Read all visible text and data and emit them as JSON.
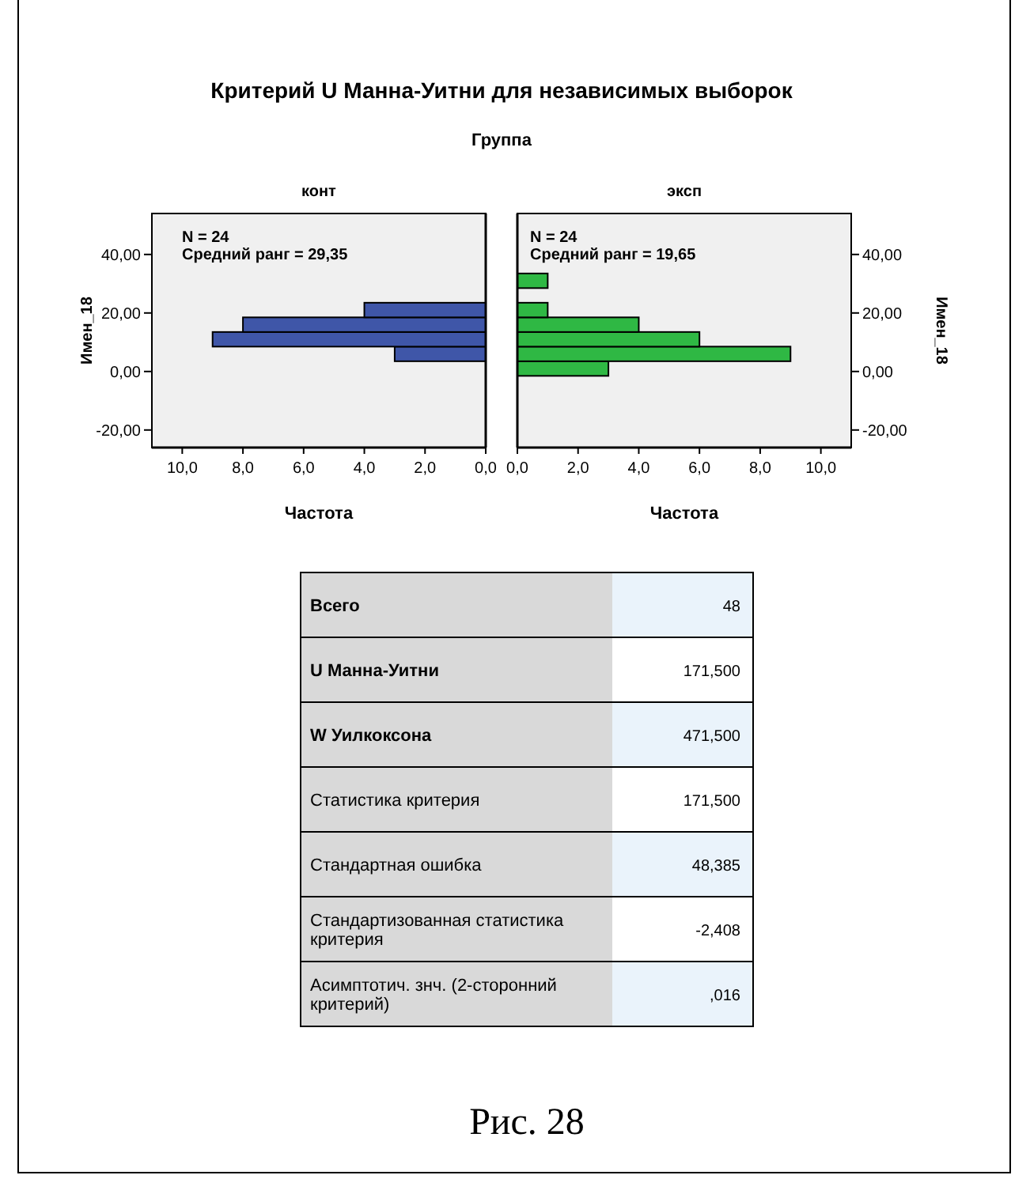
{
  "chart_data": [
    {
      "type": "histogram",
      "orientation": "horizontal",
      "title": "конт",
      "xlabel": "Частота",
      "ylabel": "Имен_18",
      "annotations": [
        "Критерий U Манна-Уитни для независимых выборок",
        "Группа",
        "N = 24",
        "Средний ранг = 29,35"
      ],
      "bins": [
        -1.5,
        3.5,
        8.5,
        13.5,
        18.5,
        23.5,
        28.5,
        33.5
      ],
      "values": [
        0,
        3,
        9,
        8,
        4,
        0,
        0
      ],
      "color": "#3f56a8",
      "xlim": [
        11,
        0
      ],
      "xticks": [
        {
          "value": 10,
          "label": "10,0"
        },
        {
          "value": 8,
          "label": "8,0"
        },
        {
          "value": 6,
          "label": "6,0"
        },
        {
          "value": 4,
          "label": "4,0"
        },
        {
          "value": 2,
          "label": "2,0"
        },
        {
          "value": 0,
          "label": "0,0"
        }
      ],
      "ylim": [
        -26,
        54
      ],
      "yticks": [
        {
          "value": -20,
          "label": "-20,00"
        },
        {
          "value": 0,
          "label": "0,00"
        },
        {
          "value": 20,
          "label": "20,00"
        },
        {
          "value": 40,
          "label": "40,00"
        }
      ]
    },
    {
      "type": "histogram",
      "orientation": "horizontal",
      "title": "эксп",
      "xlabel": "Частота",
      "ylabel": "Имен_18",
      "annotations": [
        "N = 24",
        "Средний ранг = 19,65"
      ],
      "bins": [
        -1.5,
        3.5,
        8.5,
        13.5,
        18.5,
        23.5,
        28.5,
        33.5
      ],
      "values": [
        3,
        9,
        6,
        4,
        1,
        0,
        1
      ],
      "color": "#2fb844",
      "xlim": [
        0,
        11
      ],
      "xticks": [
        {
          "value": 0,
          "label": "0,0"
        },
        {
          "value": 2,
          "label": "2,0"
        },
        {
          "value": 4,
          "label": "4,0"
        },
        {
          "value": 6,
          "label": "6,0"
        },
        {
          "value": 8,
          "label": "8,0"
        },
        {
          "value": 10,
          "label": "10,0"
        }
      ],
      "ylim": [
        -26,
        54
      ],
      "yticks": [
        {
          "value": -20,
          "label": "-20,00"
        },
        {
          "value": 0,
          "label": "0,00"
        },
        {
          "value": 20,
          "label": "20,00"
        },
        {
          "value": 40,
          "label": "40,00"
        }
      ]
    },
    {
      "type": "other",
      "title": "Рис. 28",
      "annotations": [
        "Всего",
        "48",
        "U Манна-Уитни",
        "171,500",
        "W Уилкоксона",
        "471,500",
        "Статистика критерия",
        "171,500",
        "Стандартная ошибка",
        "48,385",
        "Стандартизованная статистика критерия",
        "-2,408",
        "Асимптотич. знч. (2-сторонний критерий)",
        ",016"
      ]
    }
  ]
}
